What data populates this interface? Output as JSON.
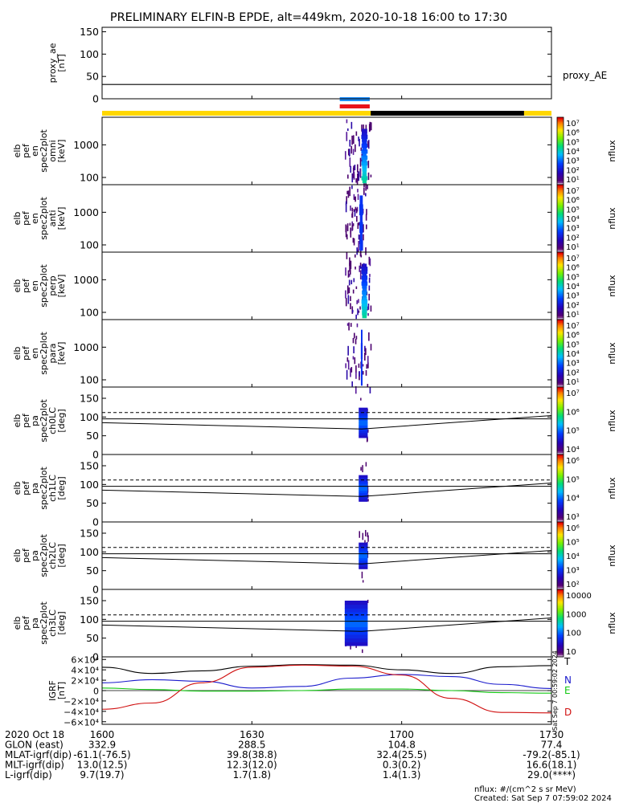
{
  "title": "PRELIMINARY ELFIN-B EPDE, alt=449km, 2020-10-18 16:00 to 17:30",
  "colors": {
    "orbit_light": "#FFD700",
    "orbit_dark": "#000000",
    "bar_blue": "#1E90FF",
    "bar_red": "#E8131C",
    "trace_T": "#000000",
    "trace_N": "#1A1ACC",
    "trace_E": "#12C812",
    "trace_D": "#D01010"
  },
  "timespan": {
    "start": "1600",
    "end": "1730",
    "start_min": 0,
    "end_min": 90
  },
  "panels": [
    {
      "id": "proxy_ae",
      "type": "line",
      "ylabel": [
        "proxy_ae",
        "[nT]"
      ],
      "legend": "proxy_AE",
      "yticks": [
        "150",
        "100",
        "50",
        "0"
      ],
      "ylim": [
        0,
        160
      ],
      "series": [
        {
          "x": [
            0,
            90
          ],
          "y": [
            32,
            32
          ]
        }
      ]
    },
    {
      "id": "pef_en_omni",
      "type": "spectrogram",
      "ylabel": [
        "elb",
        "pef",
        "en",
        "spec2plot",
        "omni",
        "[keV]"
      ],
      "yticks": [
        "1000",
        "100"
      ],
      "scale": "log",
      "ylim": [
        60,
        7000
      ],
      "activity": {
        "t_start": 48.6,
        "t_end": 53.8,
        "core_t": [
          51.9,
          53.2
        ],
        "intensity": "high"
      },
      "colorbar": {
        "label": "nflux",
        "ticks": [
          "10⁷",
          "10⁶",
          "10⁵",
          "10⁴",
          "10³",
          "10²",
          "10¹"
        ]
      }
    },
    {
      "id": "pef_en_anti",
      "type": "spectrogram",
      "ylabel": [
        "elb",
        "pef",
        "en",
        "spec2plot",
        "anti",
        "[keV]"
      ],
      "yticks": [
        "1000",
        "100"
      ],
      "scale": "log",
      "ylim": [
        60,
        7000
      ],
      "activity": {
        "t_start": 48.6,
        "t_end": 53.0,
        "core_t": [
          51.5,
          52.3
        ],
        "intensity": "low"
      },
      "colorbar": {
        "label": "nflux",
        "ticks": [
          "10⁷",
          "10⁶",
          "10⁵",
          "10⁴",
          "10³",
          "10²",
          "10¹"
        ]
      }
    },
    {
      "id": "pef_en_perp",
      "type": "spectrogram",
      "ylabel": [
        "elb",
        "pef",
        "en",
        "spec2plot",
        "perp",
        "[keV]"
      ],
      "yticks": [
        "1000",
        "100"
      ],
      "scale": "log",
      "ylim": [
        60,
        7000
      ],
      "activity": {
        "t_start": 48.6,
        "t_end": 53.8,
        "core_t": [
          51.9,
          53.2
        ],
        "intensity": "high"
      },
      "colorbar": {
        "label": "nflux",
        "ticks": [
          "10⁷",
          "10⁶",
          "10⁵",
          "10⁴",
          "10³",
          "10²",
          "10¹"
        ]
      }
    },
    {
      "id": "pef_en_para",
      "type": "spectrogram",
      "ylabel": [
        "elb",
        "pef",
        "en",
        "spec2plot",
        "para",
        "[keV]"
      ],
      "yticks": [
        "1000",
        "100"
      ],
      "scale": "log",
      "ylim": [
        60,
        7000
      ],
      "activity": {
        "t_start": 48.6,
        "t_end": 53.8,
        "core_t": [
          51.8,
          52.2
        ],
        "intensity": "sparse"
      },
      "colorbar": {
        "label": "nflux",
        "ticks": [
          "10⁷",
          "10⁶",
          "10⁵",
          "10⁴",
          "10³",
          "10²",
          "10¹"
        ]
      }
    },
    {
      "id": "pa_ch0LC",
      "type": "pitch",
      "ylabel": [
        "elb",
        "pef",
        "pa",
        "spec2plot",
        "ch0LC",
        "[deg]"
      ],
      "yticks": [
        "150",
        "100",
        "50",
        "0"
      ],
      "ylim": [
        0,
        180
      ],
      "lines": {
        "solid_lower": [
          [
            0,
            85
          ],
          [
            52,
            68
          ],
          [
            90,
            104
          ]
        ],
        "solid_upper": [
          [
            0,
            95
          ],
          [
            90,
            95
          ]
        ],
        "dashed": [
          [
            0,
            112
          ],
          [
            90,
            112
          ]
        ]
      },
      "activity": {
        "t_start": 51.4,
        "t_end": 53.2,
        "pa_range": [
          45,
          125
        ]
      },
      "colorbar": {
        "label": "nflux",
        "ticks": [
          "10⁷",
          "10⁶",
          "10⁵",
          "10⁴"
        ]
      }
    },
    {
      "id": "pa_ch1LC",
      "type": "pitch",
      "ylabel": [
        "elb",
        "pef",
        "pa",
        "spec2plot",
        "ch1LC",
        "[deg]"
      ],
      "yticks": [
        "150",
        "100",
        "50",
        "0"
      ],
      "ylim": [
        0,
        180
      ],
      "lines": {
        "solid_lower": [
          [
            0,
            85
          ],
          [
            52,
            68
          ],
          [
            90,
            104
          ]
        ],
        "solid_upper": [
          [
            0,
            95
          ],
          [
            90,
            95
          ]
        ],
        "dashed": [
          [
            0,
            112
          ],
          [
            90,
            112
          ]
        ]
      },
      "activity": {
        "t_start": 51.4,
        "t_end": 53.2,
        "pa_range": [
          55,
          125
        ]
      },
      "colorbar": {
        "label": "nflux",
        "ticks": [
          "10⁶",
          "10⁵",
          "10⁴",
          "10³"
        ]
      }
    },
    {
      "id": "pa_ch2LC",
      "type": "pitch",
      "ylabel": [
        "elb",
        "pef",
        "pa",
        "spec2plot",
        "ch2LC",
        "[deg]"
      ],
      "yticks": [
        "150",
        "100",
        "50",
        "0"
      ],
      "ylim": [
        0,
        180
      ],
      "lines": {
        "solid_lower": [
          [
            0,
            85
          ],
          [
            52,
            68
          ],
          [
            90,
            104
          ]
        ],
        "solid_upper": [
          [
            0,
            95
          ],
          [
            90,
            95
          ]
        ],
        "dashed": [
          [
            0,
            112
          ],
          [
            90,
            112
          ]
        ]
      },
      "activity": {
        "t_start": 51.4,
        "t_end": 53.2,
        "pa_range": [
          55,
          125
        ]
      },
      "colorbar": {
        "label": "nflux",
        "ticks": [
          "10⁶",
          "10⁵",
          "10⁴",
          "10³",
          "10²"
        ]
      }
    },
    {
      "id": "pa_ch3LC",
      "type": "pitch",
      "ylabel": [
        "elb",
        "pef",
        "pa",
        "spec2plot",
        "ch3LC",
        "[deg]"
      ],
      "yticks": [
        "150",
        "100",
        "50",
        "0"
      ],
      "ylim": [
        0,
        180
      ],
      "lines": {
        "solid_lower": [
          [
            0,
            85
          ],
          [
            52,
            68
          ],
          [
            90,
            104
          ]
        ],
        "solid_upper": [
          [
            0,
            95
          ],
          [
            90,
            95
          ]
        ],
        "dashed": [
          [
            0,
            112
          ],
          [
            90,
            112
          ]
        ]
      },
      "activity": {
        "t_start": 48.6,
        "t_end": 53.2,
        "pa_range": [
          30,
          150
        ]
      },
      "colorbar": {
        "label": "nflux",
        "ticks": [
          "10000",
          "1000",
          "100",
          "10"
        ]
      }
    },
    {
      "id": "igrf",
      "type": "line",
      "ylabel": [
        "IGRF",
        "[nT]"
      ],
      "yticks": [
        "6×10⁴",
        "4×10⁴",
        "2×10⁴",
        "0",
        "−2×10⁴",
        "−4×10⁴",
        "−6×10⁴"
      ],
      "ylim": [
        -65000,
        65000
      ],
      "series": [
        {
          "name": "T",
          "x": [
            0,
            10,
            20,
            30,
            40,
            50,
            60,
            70,
            80,
            90
          ],
          "y": [
            45000,
            33000,
            38000,
            47000,
            50000,
            49000,
            40000,
            33000,
            46000,
            48000
          ]
        },
        {
          "name": "N",
          "x": [
            0,
            10,
            20,
            30,
            40,
            50,
            60,
            70,
            80,
            90
          ],
          "y": [
            15000,
            21000,
            18000,
            5000,
            8000,
            24000,
            31000,
            27000,
            12000,
            4000
          ]
        },
        {
          "name": "E",
          "x": [
            0,
            10,
            20,
            30,
            40,
            50,
            60,
            70,
            80,
            90
          ],
          "y": [
            5000,
            2000,
            -1000,
            -1000,
            0,
            3000,
            3000,
            0,
            -4000,
            -5000
          ]
        },
        {
          "name": "D",
          "x": [
            0,
            10,
            20,
            30,
            40,
            50,
            60,
            70,
            80,
            90
          ],
          "y": [
            -36000,
            -24000,
            15000,
            45000,
            49000,
            47000,
            30000,
            -15000,
            -42000,
            -43000
          ]
        }
      ]
    }
  ],
  "xaxis": {
    "tick_labels": [
      "1600",
      "1630",
      "1700",
      "1730"
    ],
    "tick_minutes": [
      0,
      30,
      60,
      90
    ]
  },
  "footer": {
    "rows": [
      {
        "label": "2020 Oct 18",
        "values": [
          "1600",
          "1630",
          "1700",
          "1730"
        ]
      },
      {
        "label": "GLON (east)",
        "values": [
          "332.9",
          "288.5",
          "104.8",
          "77.4"
        ]
      },
      {
        "label": "MLAT-igrf(dip)",
        "values": [
          "-61.1(-76.5)",
          "39.8(38.8)",
          "32.4(25.5)",
          "-79.2(-85.1)"
        ]
      },
      {
        "label": "MLT-igrf(dip)",
        "values": [
          "13.0(12.5)",
          "12.3(12.0)",
          "0.3(0.2)",
          "16.6(18.1)"
        ]
      },
      {
        "label": "L-igrf(dip)",
        "values": [
          "9.7(19.7)",
          "1.7(1.8)",
          "1.4(1.3)",
          "29.0(****)"
        ]
      }
    ],
    "note_units": "nflux: #/(cm^2 s sr MeV)",
    "note_created": "Created: Sat Sep  7 07:59:02 2024",
    "side_stamp": "Sat Sep  7 00:59:02 2024"
  },
  "orbit_bar": {
    "dark_span": [
      53.8,
      84.5
    ]
  },
  "status_bars": {
    "blue": [
      47.6,
      53.6
    ],
    "red": [
      47.6,
      53.6
    ]
  }
}
